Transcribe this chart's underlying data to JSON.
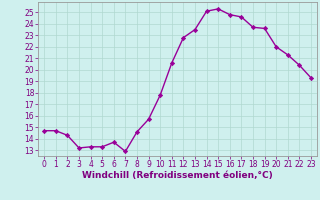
{
  "x": [
    0,
    1,
    2,
    3,
    4,
    5,
    6,
    7,
    8,
    9,
    10,
    11,
    12,
    13,
    14,
    15,
    16,
    17,
    18,
    19,
    20,
    21,
    22,
    23
  ],
  "y": [
    14.7,
    14.7,
    14.3,
    13.2,
    13.3,
    13.3,
    13.7,
    12.9,
    14.6,
    15.7,
    17.8,
    20.6,
    22.8,
    23.5,
    25.1,
    25.3,
    24.8,
    24.6,
    23.7,
    23.6,
    22.0,
    21.3,
    20.4,
    19.3
  ],
  "line_color": "#990099",
  "marker": "D",
  "marker_size": 2.2,
  "linewidth": 1.0,
  "xlabel": "Windchill (Refroidissement éolien,°C)",
  "xlabel_fontsize": 6.5,
  "xlim": [
    -0.5,
    23.5
  ],
  "ylim": [
    12.5,
    25.9
  ],
  "yticks": [
    13,
    14,
    15,
    16,
    17,
    18,
    19,
    20,
    21,
    22,
    23,
    24,
    25
  ],
  "xticks": [
    0,
    1,
    2,
    3,
    4,
    5,
    6,
    7,
    8,
    9,
    10,
    11,
    12,
    13,
    14,
    15,
    16,
    17,
    18,
    19,
    20,
    21,
    22,
    23
  ],
  "bg_color": "#cff0ee",
  "grid_color": "#b0d8d0",
  "tick_fontsize": 5.5,
  "tick_color": "#800080",
  "xlabel_color": "#800080"
}
